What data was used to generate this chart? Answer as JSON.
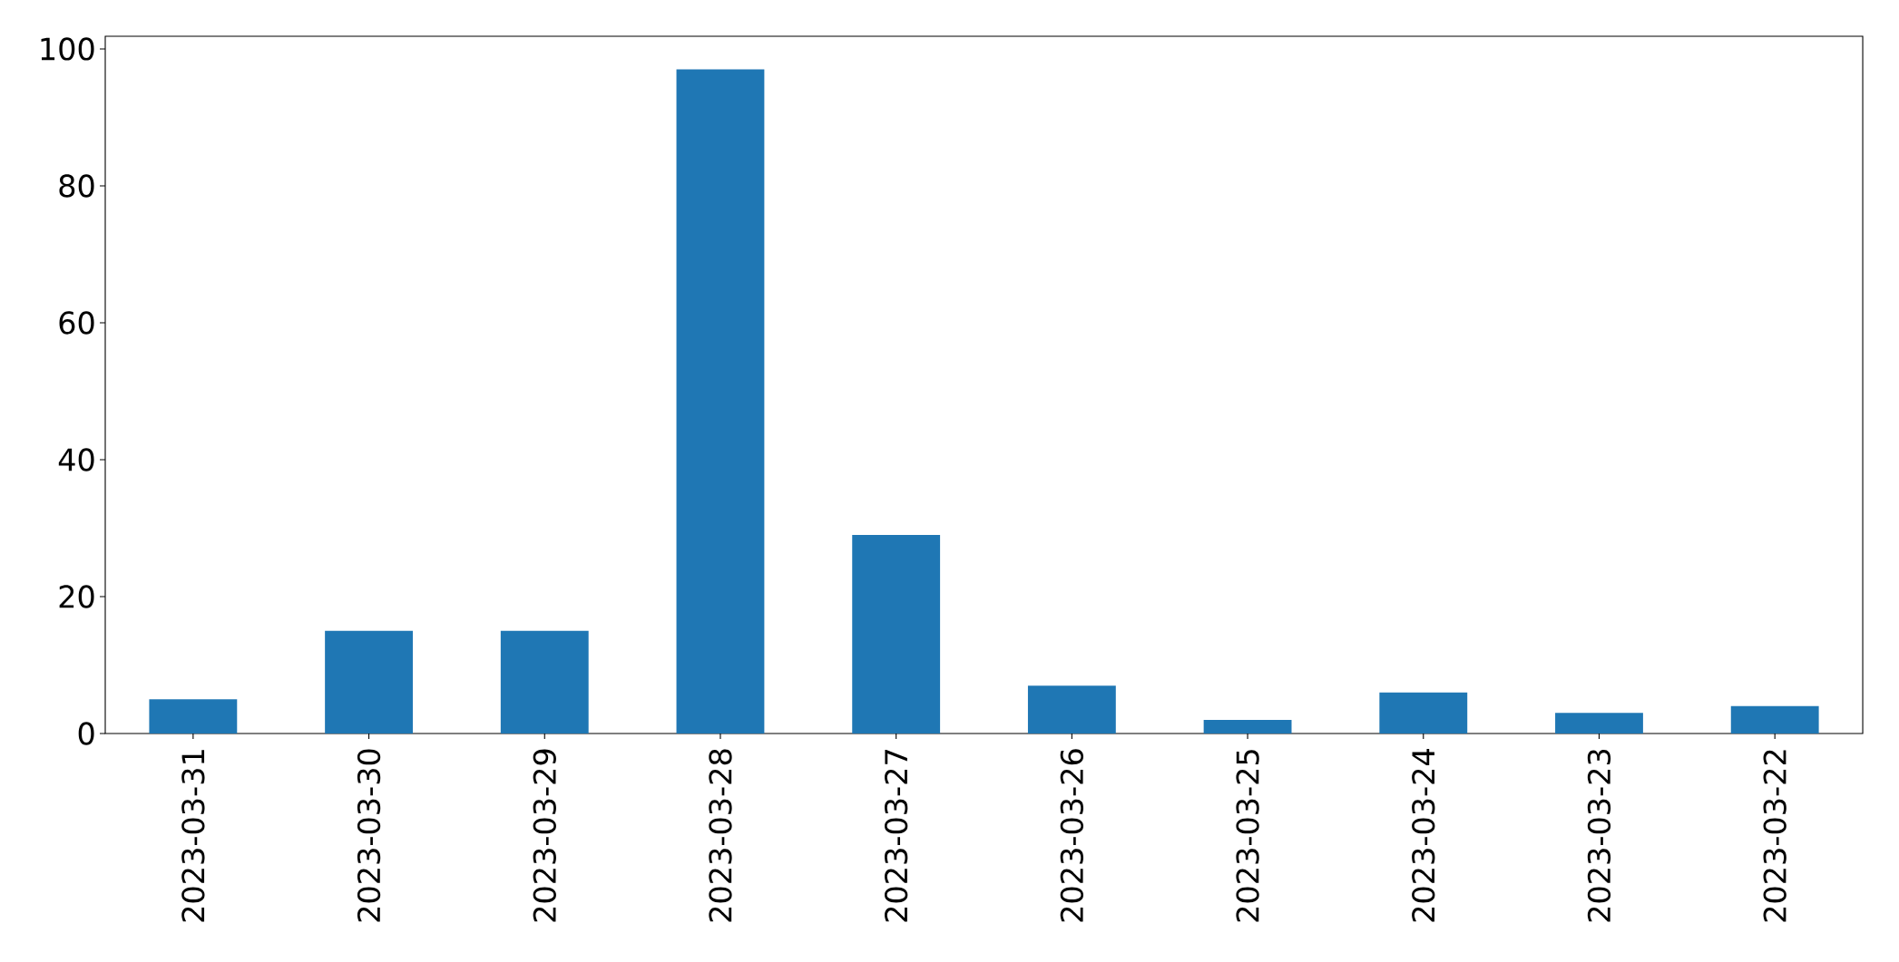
{
  "chart_data": {
    "type": "bar",
    "categories": [
      "2023-03-31",
      "2023-03-30",
      "2023-03-29",
      "2023-03-28",
      "2023-03-27",
      "2023-03-26",
      "2023-03-25",
      "2023-03-24",
      "2023-03-23",
      "2023-03-22"
    ],
    "values": [
      5,
      15,
      15,
      97,
      29,
      7,
      2,
      6,
      3,
      4
    ],
    "color": "#1f77b4",
    "ylim": [
      0,
      101.85
    ],
    "yticks": [
      0,
      20,
      40,
      60,
      80,
      100
    ]
  }
}
